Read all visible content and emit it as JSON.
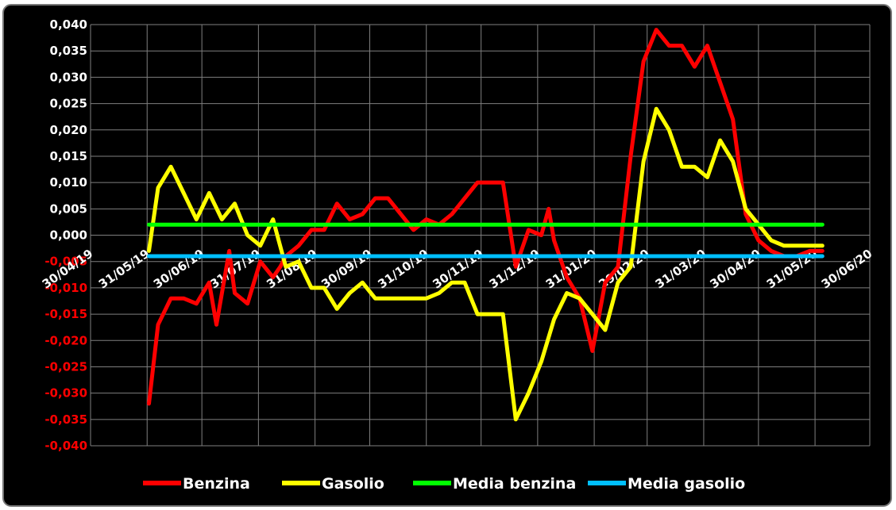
{
  "chart_data": {
    "type": "line",
    "title": "",
    "xlabel": "",
    "ylabel": "",
    "ylim": [
      -0.04,
      0.04
    ],
    "y_ticks": [
      "0,040",
      "0,035",
      "0,030",
      "0,025",
      "0,020",
      "0,015",
      "0,010",
      "0,005",
      "0,000",
      "-0,005",
      "-0,010",
      "-0,015",
      "-0,020",
      "-0,025",
      "-0,030",
      "-0,035",
      "-0,040"
    ],
    "x_ticks": [
      "30/04/19",
      "31/05/19",
      "30/06/19",
      "31/07/19",
      "31/08/19",
      "30/09/19",
      "31/10/19",
      "30/11/19",
      "31/12/19",
      "31/01/20",
      "29/02/20",
      "31/03/20",
      "30/04/20",
      "31/05/20",
      "30/06/20"
    ],
    "grid": true,
    "legend_position": "bottom",
    "background": "#000000",
    "colors": {
      "positive_tick": "#ffffff",
      "negative_tick": "#ff0000",
      "grid": "#7f7f7f"
    },
    "series": [
      {
        "name": "Benzina",
        "color": "#ff0000",
        "x": [
          "2019-06-01",
          "2019-06-06",
          "2019-06-13",
          "2019-06-20",
          "2019-06-27",
          "2019-07-04",
          "2019-07-08",
          "2019-07-11",
          "2019-07-15",
          "2019-07-18",
          "2019-07-25",
          "2019-08-01",
          "2019-08-08",
          "2019-08-12",
          "2019-08-15",
          "2019-08-22",
          "2019-08-29",
          "2019-09-05",
          "2019-09-12",
          "2019-09-19",
          "2019-09-26",
          "2019-10-03",
          "2019-10-10",
          "2019-10-17",
          "2019-10-24",
          "2019-10-31",
          "2019-11-07",
          "2019-11-14",
          "2019-11-21",
          "2019-11-28",
          "2019-12-05",
          "2019-12-12",
          "2019-12-19",
          "2019-12-26",
          "2020-01-02",
          "2020-01-06",
          "2020-01-09",
          "2020-01-16",
          "2020-01-23",
          "2020-01-30",
          "2020-02-06",
          "2020-02-13",
          "2020-02-20",
          "2020-02-27",
          "2020-03-05",
          "2020-03-12",
          "2020-03-19",
          "2020-03-26",
          "2020-04-02",
          "2020-04-09",
          "2020-04-16",
          "2020-04-23",
          "2020-04-30",
          "2020-05-07",
          "2020-05-14",
          "2020-05-21",
          "2020-05-28",
          "2020-06-04"
        ],
        "values": [
          -0.032,
          -0.017,
          -0.012,
          -0.012,
          -0.013,
          -0.009,
          -0.017,
          -0.011,
          -0.003,
          -0.011,
          -0.013,
          -0.005,
          -0.008,
          -0.006,
          -0.004,
          -0.002,
          0.001,
          0.001,
          0.006,
          0.003,
          0.004,
          0.007,
          0.007,
          0.004,
          0.001,
          0.003,
          0.002,
          0.004,
          0.007,
          0.01,
          0.01,
          0.01,
          -0.006,
          0.001,
          0.0,
          0.005,
          -0.001,
          -0.008,
          -0.012,
          -0.022,
          -0.009,
          -0.006,
          0.015,
          0.033,
          0.039,
          0.036,
          0.036,
          0.032,
          0.036,
          0.029,
          0.022,
          0.004,
          -0.001,
          -0.003,
          -0.004,
          -0.004,
          -0.003,
          -0.003
        ]
      },
      {
        "name": "Gasolio",
        "color": "#ffff00",
        "x": [
          "2019-06-01",
          "2019-06-06",
          "2019-06-13",
          "2019-06-20",
          "2019-06-27",
          "2019-07-04",
          "2019-07-11",
          "2019-07-18",
          "2019-07-25",
          "2019-08-01",
          "2019-08-08",
          "2019-08-15",
          "2019-08-22",
          "2019-08-29",
          "2019-09-05",
          "2019-09-12",
          "2019-09-19",
          "2019-09-26",
          "2019-10-03",
          "2019-10-10",
          "2019-10-17",
          "2019-10-24",
          "2019-10-31",
          "2019-11-07",
          "2019-11-14",
          "2019-11-21",
          "2019-11-28",
          "2019-12-05",
          "2019-12-12",
          "2019-12-19",
          "2019-12-26",
          "2020-01-02",
          "2020-01-09",
          "2020-01-16",
          "2020-01-23",
          "2020-01-30",
          "2020-02-06",
          "2020-02-13",
          "2020-02-20",
          "2020-02-27",
          "2020-03-05",
          "2020-03-12",
          "2020-03-19",
          "2020-03-26",
          "2020-04-02",
          "2020-04-09",
          "2020-04-16",
          "2020-04-23",
          "2020-04-30",
          "2020-05-07",
          "2020-05-14",
          "2020-05-21",
          "2020-05-28",
          "2020-06-04"
        ],
        "values": [
          -0.003,
          0.009,
          0.013,
          0.008,
          0.003,
          0.008,
          0.003,
          0.006,
          0.0,
          -0.002,
          0.003,
          -0.006,
          -0.005,
          -0.01,
          -0.01,
          -0.014,
          -0.011,
          -0.009,
          -0.012,
          -0.012,
          -0.012,
          -0.012,
          -0.012,
          -0.011,
          -0.009,
          -0.009,
          -0.015,
          -0.015,
          -0.015,
          -0.035,
          -0.03,
          -0.024,
          -0.016,
          -0.011,
          -0.012,
          -0.015,
          -0.018,
          -0.009,
          -0.006,
          0.014,
          0.024,
          0.02,
          0.013,
          0.013,
          0.011,
          0.018,
          0.014,
          0.005,
          0.002,
          -0.001,
          -0.002,
          -0.002,
          -0.002,
          -0.002
        ]
      },
      {
        "name": "Media benzina",
        "color": "#00ff00",
        "x": [
          "2019-06-01",
          "2020-06-04"
        ],
        "values": [
          0.002,
          0.002
        ]
      },
      {
        "name": "Media gasolio",
        "color": "#00bfff",
        "x": [
          "2019-06-01",
          "2020-06-04"
        ],
        "values": [
          -0.004,
          -0.004
        ]
      }
    ]
  }
}
